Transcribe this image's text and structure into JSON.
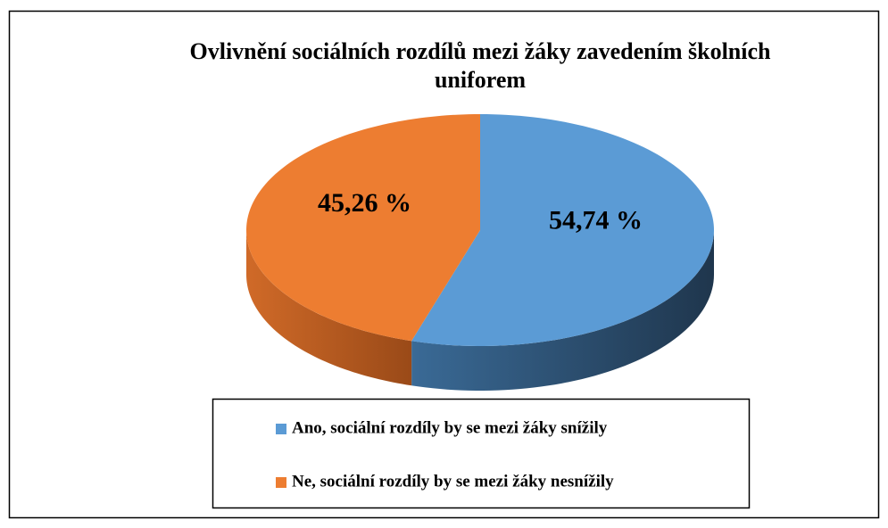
{
  "chart_data": {
    "type": "pie",
    "title": "Ovlivnění sociálních rozdílů mezi žáky zavedením školních uniforem",
    "categories": [
      "Ano, sociální rozdíly by se mezi žáky snížily",
      "Ne, sociální rozdíly by se mezi žáky nesnížily"
    ],
    "values": [
      54.74,
      45.26
    ],
    "value_labels": [
      "54,74 %",
      "45,26 %"
    ],
    "colors": [
      "#5b9bd5",
      "#ed7d31"
    ],
    "legend": "bottom"
  }
}
